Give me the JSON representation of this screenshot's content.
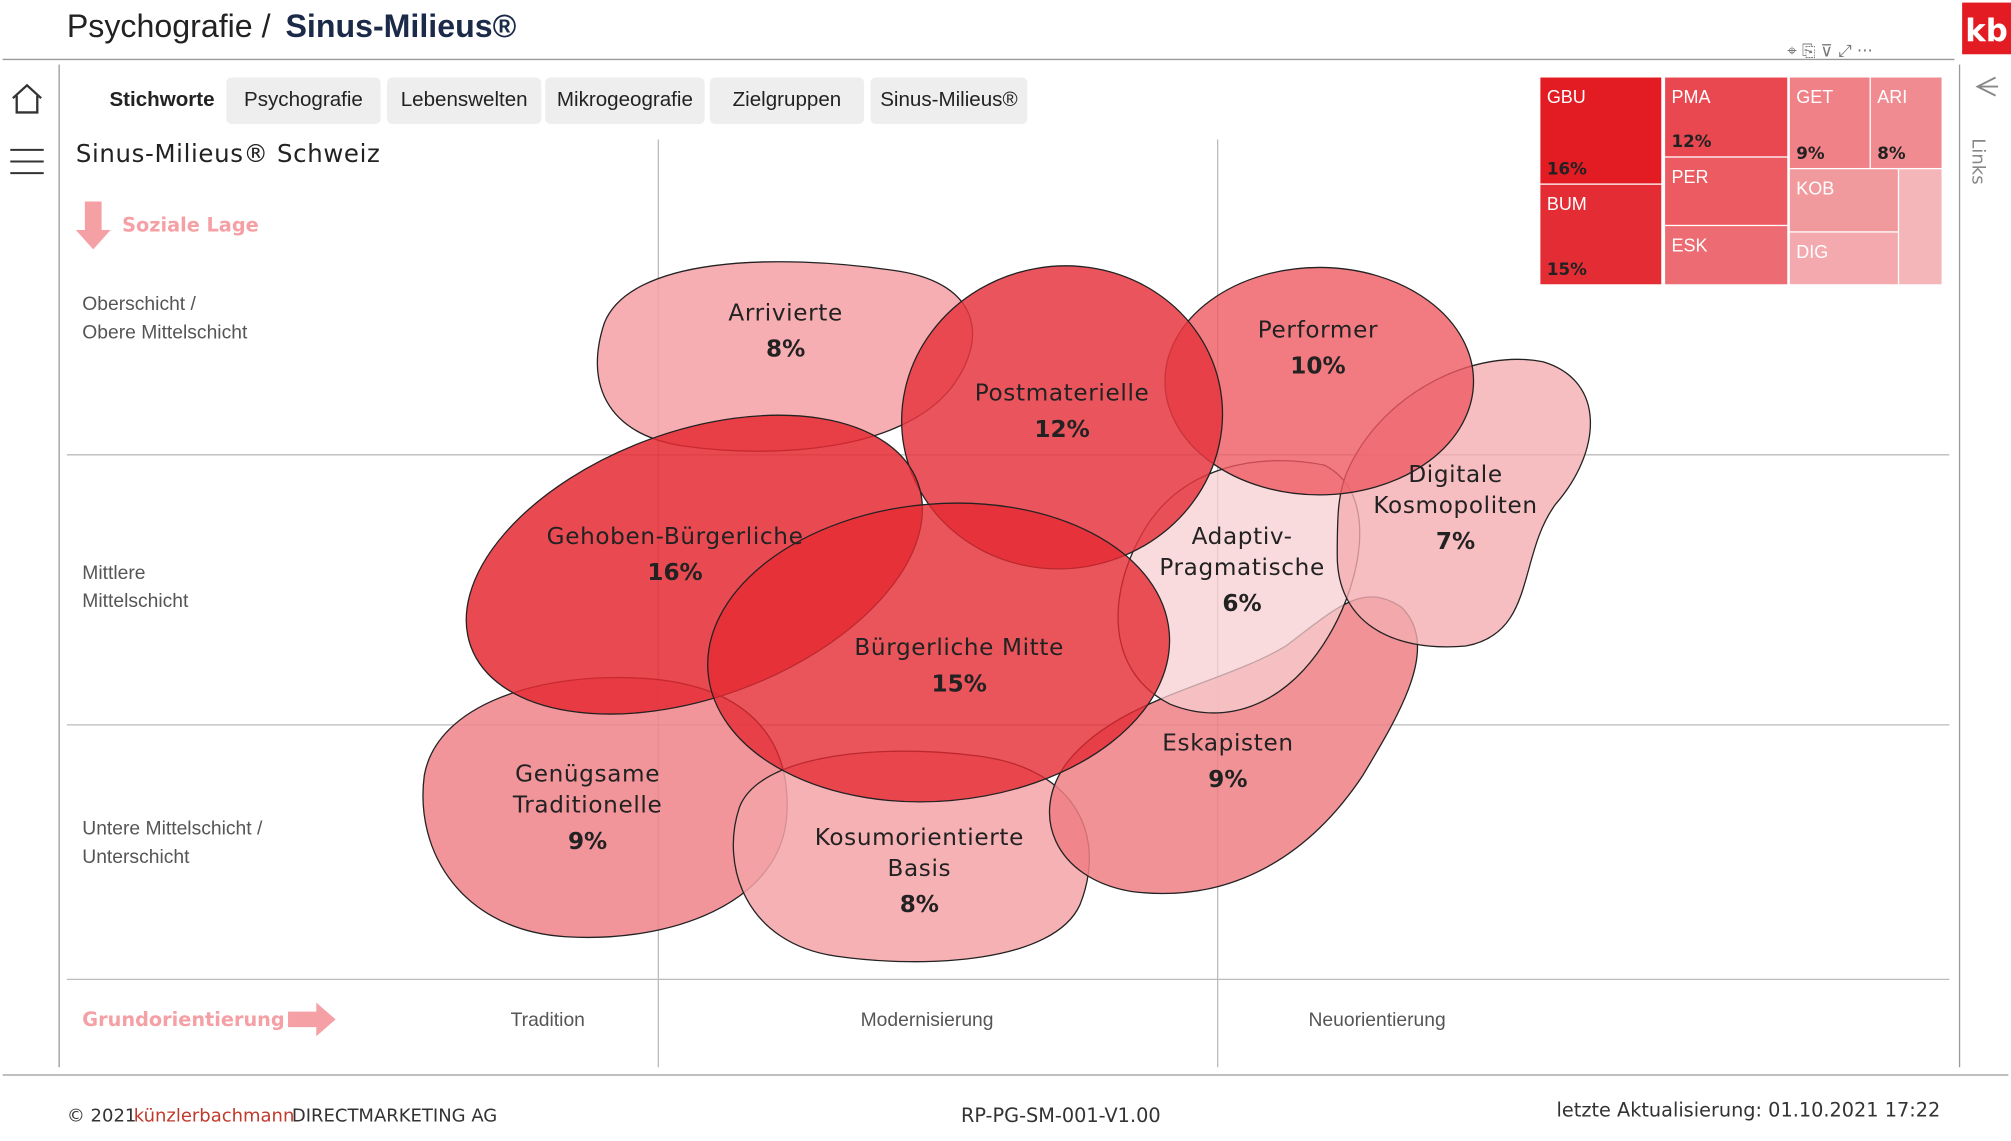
{
  "header": {
    "title_prefix": "Psychografie /",
    "title_main": "Sinus-Milieus®",
    "logo": "kb"
  },
  "tabs": [
    "Stichworte",
    "Psychografie",
    "Lebenswelten",
    "Mikrogeografie",
    "Zielgruppen",
    "Sinus-Milieus®"
  ],
  "side_panel": {
    "label": "Links"
  },
  "map": {
    "title": "Sinus-Milieus® Schweiz",
    "y_axis_label": "Soziale Lage",
    "rows": [
      [
        "Oberschicht /",
        "Obere Mittelschicht"
      ],
      [
        "Mittlere",
        "Mittelschicht"
      ],
      [
        "Untere Mittelschicht /",
        "Unterschicht"
      ]
    ],
    "x_axis_label": "Grundorientierung",
    "columns": [
      "Tradition",
      "Modernisierung",
      "Neuorientierung"
    ],
    "milieus": [
      {
        "lines": [
          "Arrivierte"
        ],
        "share": "8%"
      },
      {
        "lines": [
          "Postmaterielle"
        ],
        "share": "12%"
      },
      {
        "lines": [
          "Performer"
        ],
        "share": "10%"
      },
      {
        "lines": [
          "Gehoben-Bürgerliche"
        ],
        "share": "16%"
      },
      {
        "lines": [
          "Bürgerliche Mitte"
        ],
        "share": "15%"
      },
      {
        "lines": [
          "Adaptiv-",
          "Pragmatische"
        ],
        "share": "6%"
      },
      {
        "lines": [
          "Digitale",
          "Kosmopoliten"
        ],
        "share": "7%"
      },
      {
        "lines": [
          "Eskapisten"
        ],
        "share": "9%"
      },
      {
        "lines": [
          "Genügsame",
          "Traditionelle"
        ],
        "share": "9%"
      },
      {
        "lines": [
          "Kosumorientierte",
          "Basis"
        ],
        "share": "8%"
      }
    ]
  },
  "treemap": [
    {
      "code": "GBU",
      "share": "16%"
    },
    {
      "code": "BUM",
      "share": "15%"
    },
    {
      "code": "PMA",
      "share": "12%"
    },
    {
      "code": "PER"
    },
    {
      "code": "ESK"
    },
    {
      "code": "GET",
      "share": "9%"
    },
    {
      "code": "ARI",
      "share": "8%"
    },
    {
      "code": "KOB"
    },
    {
      "code": "DIG"
    }
  ],
  "footer": {
    "copyright": "© 2021",
    "company": "künzlerbachmann",
    "company_suffix": "DIRECTMARKETING AG",
    "report_id": "RP-PG-SM-001-V1.00",
    "updated": "letzte Aktualisierung: 01.10.2021 17:22"
  }
}
